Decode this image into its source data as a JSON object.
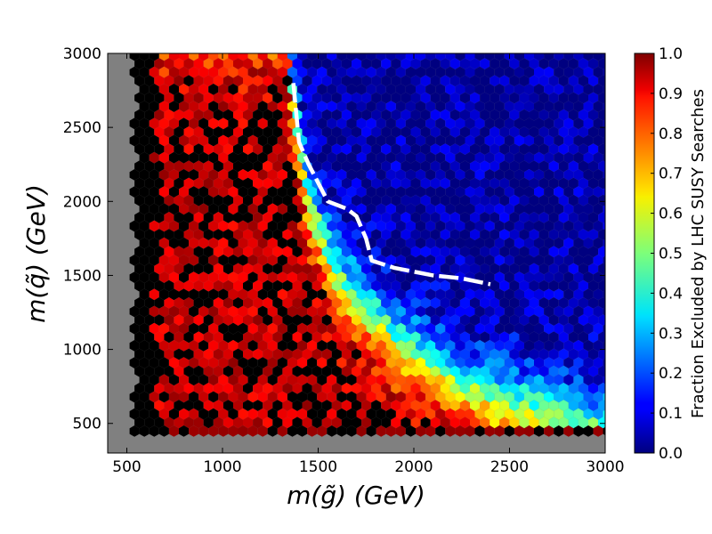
{
  "chart_data": {
    "type": "heatmap",
    "subtype": "hexbin",
    "xlabel": "m(g̃) (GeV)",
    "ylabel": "m(q̃) (GeV)",
    "xlim": [
      400,
      3000
    ],
    "ylim": [
      300,
      3000
    ],
    "x_ticks": [
      500,
      1000,
      1500,
      2000,
      2500,
      3000
    ],
    "y_ticks": [
      500,
      1000,
      1500,
      2000,
      2500,
      3000
    ],
    "x_tick_labels": [
      "500",
      "1000",
      "1500",
      "2000",
      "2500",
      "3000"
    ],
    "y_tick_labels": [
      "500",
      "1000",
      "1500",
      "2000",
      "2500",
      "3000"
    ],
    "colorbar": {
      "label": "Fraction Excluded by LHC SUSY Searches",
      "range": [
        0.0,
        1.0
      ],
      "ticks": [
        0.0,
        0.1,
        0.2,
        0.3,
        0.4,
        0.5,
        0.6,
        0.7,
        0.8,
        0.9,
        1.0
      ],
      "tick_labels": [
        "0.0",
        "0.1",
        "0.2",
        "0.3",
        "0.4",
        "0.5",
        "0.6",
        "0.7",
        "0.8",
        "0.9",
        "1.0"
      ],
      "colormap": "jet"
    },
    "background_color": "#808080",
    "boundary_contour": {
      "style": "white dashed",
      "x": [
        1370,
        1400,
        1450,
        1550,
        1650,
        1700,
        1750,
        1780,
        1900,
        2100,
        2250,
        2400
      ],
      "y": [
        2800,
        2400,
        2250,
        2000,
        1950,
        1900,
        1750,
        1600,
        1550,
        1500,
        1480,
        1440
      ]
    },
    "fraction_field": {
      "description_free_params": true,
      "core_edge_points": {
        "x": [
          1350,
          1450,
          1600,
          1900,
          2300,
          2900
        ],
        "y": [
          2800,
          2000,
          1500,
          1100,
          800,
          600
        ]
      },
      "low_gluino_fully_excluded_below_x": 650,
      "low_squark_fully_excluded_below_y": 480
    }
  }
}
